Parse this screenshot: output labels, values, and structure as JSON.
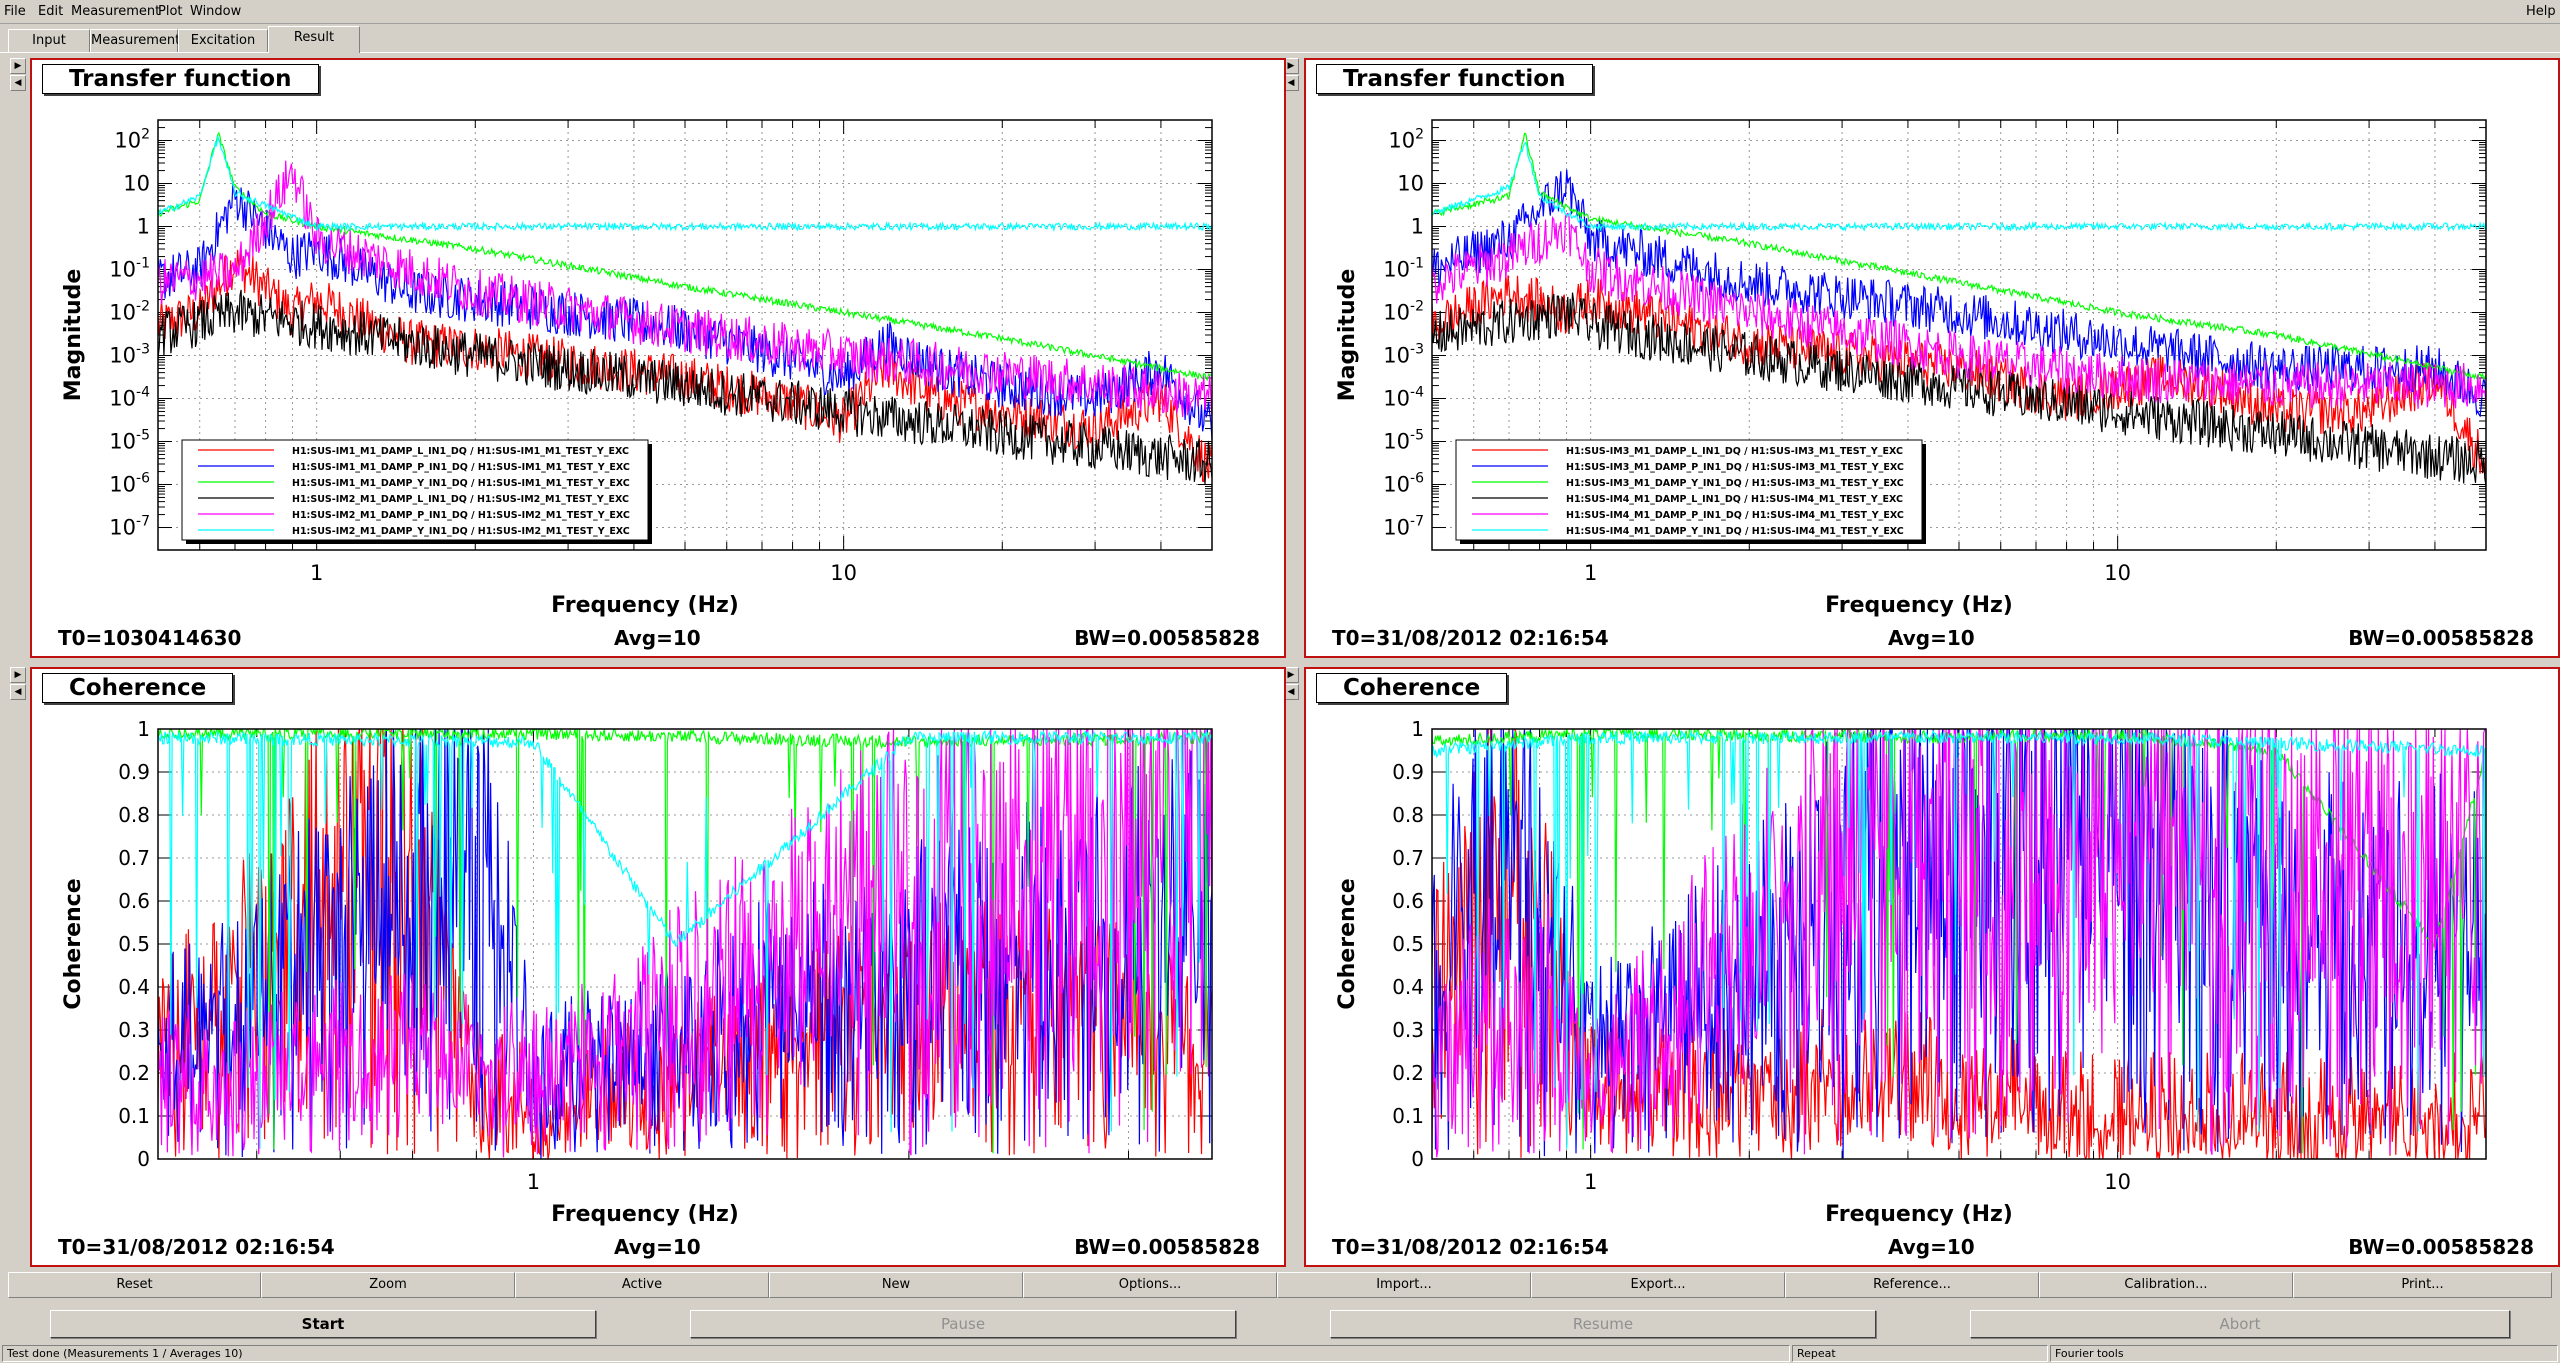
{
  "menubar": {
    "items": [
      "File",
      "Edit",
      "Measurement",
      "Plot",
      "Window"
    ],
    "help": "Help"
  },
  "tabs": [
    "Input",
    "Measurement",
    "Excitation",
    "Result"
  ],
  "active_tab": "Result",
  "panels": [
    {
      "title": "Transfer function",
      "ylabel": "Magnitude",
      "xlabel": "Frequency (Hz)",
      "t0": "T0=1030414630",
      "avg": "Avg=10",
      "bw": "BW=0.00585828",
      "legend": [
        "H1:SUS-IM1_M1_DAMP_L_IN1_DQ / H1:SUS-IM1_M1_TEST_Y_EXC",
        "H1:SUS-IM1_M1_DAMP_P_IN1_DQ / H1:SUS-IM1_M1_TEST_Y_EXC",
        "H1:SUS-IM1_M1_DAMP_Y_IN1_DQ / H1:SUS-IM1_M1_TEST_Y_EXC",
        "H1:SUS-IM2_M1_DAMP_L_IN1_DQ / H1:SUS-IM2_M1_TEST_Y_EXC",
        "H1:SUS-IM2_M1_DAMP_P_IN1_DQ / H1:SUS-IM2_M1_TEST_Y_EXC",
        "H1:SUS-IM2_M1_DAMP_Y_IN1_DQ / H1:SUS-IM2_M1_TEST_Y_EXC"
      ]
    },
    {
      "title": "Transfer function",
      "ylabel": "Magnitude",
      "xlabel": "Frequency (Hz)",
      "t0": "T0=31/08/2012 02:16:54",
      "avg": "Avg=10",
      "bw": "BW=0.00585828",
      "legend": [
        "H1:SUS-IM3_M1_DAMP_L_IN1_DQ / H1:SUS-IM3_M1_TEST_Y_EXC",
        "H1:SUS-IM3_M1_DAMP_P_IN1_DQ / H1:SUS-IM3_M1_TEST_Y_EXC",
        "H1:SUS-IM3_M1_DAMP_Y_IN1_DQ / H1:SUS-IM3_M1_TEST_Y_EXC",
        "H1:SUS-IM4_M1_DAMP_L_IN1_DQ / H1:SUS-IM4_M1_TEST_Y_EXC",
        "H1:SUS-IM4_M1_DAMP_P_IN1_DQ / H1:SUS-IM4_M1_TEST_Y_EXC",
        "H1:SUS-IM4_M1_DAMP_Y_IN1_DQ / H1:SUS-IM4_M1_TEST_Y_EXC"
      ]
    },
    {
      "title": "Coherence",
      "ylabel": "Coherence",
      "xlabel": "Frequency (Hz)",
      "t0": "T0=31/08/2012 02:16:54",
      "avg": "Avg=10",
      "bw": "BW=0.00585828"
    },
    {
      "title": "Coherence",
      "ylabel": "Coherence",
      "xlabel": "Frequency (Hz)",
      "t0": "T0=31/08/2012 02:16:54",
      "avg": "Avg=10",
      "bw": "BW=0.00585828"
    }
  ],
  "chart_data": [
    {
      "type": "line",
      "title": "Transfer function",
      "xlabel": "Frequency (Hz)",
      "ylabel": "Magnitude",
      "xscale": "log",
      "yscale": "log",
      "xlim": [
        0.5,
        50
      ],
      "ylim": [
        3e-08,
        300
      ],
      "xticks": [
        "1",
        "10"
      ],
      "yticks": [
        "10^2",
        "10",
        "1",
        "10^-1",
        "10^-2",
        "10^-3",
        "10^-4",
        "10^-5",
        "10^-6",
        "10^-7"
      ],
      "grid": true,
      "legend_position": "bottom-left",
      "series": [
        {
          "name": "H1:SUS-IM1_M1_DAMP_L_IN1_DQ / H1:SUS-IM1_M1_TEST_Y_EXC",
          "color": "#ff0000",
          "x": [
            0.5,
            0.6,
            0.7,
            0.9,
            1.0,
            1.5,
            2,
            3,
            5,
            8,
            10,
            12,
            15,
            20,
            30,
            40,
            50
          ],
          "y": [
            0.005,
            0.01,
            0.15,
            0.01,
            0.02,
            0.002,
            0.0015,
            0.0007,
            0.0003,
            8e-05,
            3e-05,
            0.0005,
            0.0001,
            5e-05,
            2e-05,
            0.0001,
            2e-06
          ]
        },
        {
          "name": "H1:SUS-IM1_M1_DAMP_P_IN1_DQ / H1:SUS-IM1_M1_TEST_Y_EXC",
          "color": "#0000ff",
          "x": [
            0.5,
            0.6,
            0.7,
            0.9,
            1.0,
            1.5,
            2,
            3,
            5,
            8,
            10,
            12,
            15,
            20,
            30,
            40,
            50
          ],
          "y": [
            0.06,
            0.1,
            5,
            0.2,
            0.3,
            0.03,
            0.02,
            0.01,
            0.004,
            0.0008,
            0.0003,
            0.002,
            0.0005,
            0.0002,
            0.0001,
            0.0005,
            2e-05
          ]
        },
        {
          "name": "H1:SUS-IM1_M1_DAMP_Y_IN1_DQ / H1:SUS-IM1_M1_TEST_Y_EXC",
          "color": "#00ff00",
          "x": [
            0.5,
            0.6,
            0.65,
            0.7,
            0.8,
            1.0,
            2,
            5,
            10,
            20,
            50
          ],
          "y": [
            2,
            4,
            150,
            8,
            2,
            1,
            0.3,
            0.04,
            0.01,
            0.0025,
            0.0003
          ]
        },
        {
          "name": "H1:SUS-IM2_M1_DAMP_L_IN1_DQ / H1:SUS-IM2_M1_TEST_Y_EXC",
          "color": "#000000",
          "x": [
            0.5,
            0.7,
            1.0,
            2,
            5,
            10,
            50
          ],
          "y": [
            0.003,
            0.01,
            0.005,
            0.001,
            0.0002,
            5e-05,
            3e-06
          ]
        },
        {
          "name": "H1:SUS-IM2_M1_DAMP_P_IN1_DQ / H1:SUS-IM2_M1_TEST_Y_EXC",
          "color": "#ff00ff",
          "x": [
            0.5,
            0.7,
            0.9,
            1.0,
            2,
            5,
            10,
            20,
            50
          ],
          "y": [
            0.05,
            0.08,
            20,
            0.5,
            0.03,
            0.004,
            0.001,
            0.0004,
            0.0001
          ]
        },
        {
          "name": "H1:SUS-IM2_M1_DAMP_Y_IN1_DQ / H1:SUS-IM2_M1_TEST_Y_EXC",
          "color": "#00ffff",
          "x": [
            0.5,
            0.6,
            0.65,
            0.7,
            1.0
          ],
          "y": [
            2,
            5,
            120,
            6,
            1
          ]
        }
      ]
    },
    {
      "type": "line",
      "title": "Transfer function",
      "xlabel": "Frequency (Hz)",
      "ylabel": "Magnitude",
      "xscale": "log",
      "yscale": "log",
      "xlim": [
        0.5,
        50
      ],
      "ylim": [
        3e-08,
        300
      ],
      "xticks": [
        "1",
        "10"
      ],
      "yticks": [
        "10^2",
        "10",
        "1",
        "10^-1",
        "10^-2",
        "10^-3",
        "10^-4",
        "10^-5",
        "10^-6",
        "10^-7"
      ],
      "grid": true,
      "legend_position": "bottom-left",
      "series": [
        {
          "name": "H1:SUS-IM3_M1_DAMP_L_IN1_DQ / H1:SUS-IM3_M1_TEST_Y_EXC",
          "color": "#ff0000",
          "x": [
            0.5,
            0.7,
            0.9,
            1.0,
            2,
            5,
            8,
            12,
            15,
            20,
            30,
            40,
            50
          ],
          "y": [
            0.005,
            0.03,
            0.01,
            0.02,
            0.002,
            0.0005,
            0.0001,
            0.0003,
            0.0002,
            5e-05,
            5e-05,
            0.0003,
            3e-06
          ]
        },
        {
          "name": "H1:SUS-IM3_M1_DAMP_P_IN1_DQ / H1:SUS-IM3_M1_TEST_Y_EXC",
          "color": "#0000ff",
          "x": [
            0.5,
            0.7,
            0.9,
            1.0,
            2,
            5,
            10,
            20,
            40,
            50
          ],
          "y": [
            0.1,
            0.5,
            10,
            0.5,
            0.05,
            0.01,
            0.002,
            0.0005,
            0.0005,
            0.0001
          ]
        },
        {
          "name": "H1:SUS-IM3_M1_DAMP_Y_IN1_DQ / H1:SUS-IM3_M1_TEST_Y_EXC",
          "color": "#00ff00",
          "x": [
            0.5,
            0.7,
            0.75,
            0.8,
            1.0,
            2,
            5,
            10,
            20,
            50
          ],
          "y": [
            2,
            5,
            150,
            6,
            1.5,
            0.4,
            0.05,
            0.01,
            0.003,
            0.0003
          ]
        },
        {
          "name": "H1:SUS-IM4_M1_DAMP_L_IN1_DQ / H1:SUS-IM4_M1_TEST_Y_EXC",
          "color": "#000000",
          "x": [
            0.5,
            0.9,
            1.0,
            2,
            10,
            50
          ],
          "y": [
            0.003,
            0.01,
            0.005,
            0.001,
            5e-05,
            3e-06
          ]
        },
        {
          "name": "H1:SUS-IM4_M1_DAMP_P_IN1_DQ / H1:SUS-IM4_M1_TEST_Y_EXC",
          "color": "#ff00ff",
          "x": [
            0.5,
            0.7,
            0.9,
            1.0,
            2,
            5,
            10,
            20
          ],
          "y": [
            0.05,
            0.2,
            1,
            0.1,
            0.01,
            0.001,
            0.0003,
            0.0002
          ]
        },
        {
          "name": "H1:SUS-IM4_M1_DAMP_Y_IN1_DQ / H1:SUS-IM4_M1_TEST_Y_EXC",
          "color": "#00ffff",
          "x": [
            0.5,
            0.7,
            0.75,
            0.8,
            1.0
          ],
          "y": [
            2,
            8,
            100,
            5,
            1
          ]
        }
      ]
    },
    {
      "type": "line",
      "title": "Coherence",
      "xlabel": "Frequency (Hz)",
      "ylabel": "Coherence",
      "xscale": "log",
      "xlim": [
        0.5,
        3.5
      ],
      "ylim": [
        0,
        1
      ],
      "xticks": [
        "1"
      ],
      "yticks": [
        "0",
        "0.1",
        "0.2",
        "0.3",
        "0.4",
        "0.5",
        "0.6",
        "0.7",
        "0.8",
        "0.9",
        "1"
      ],
      "grid": true,
      "series": [
        {
          "color": "#ff0000",
          "x": [
            0.5,
            0.6,
            0.7,
            0.8,
            0.9,
            1.0,
            1.5,
            2,
            3,
            3.5
          ],
          "y": [
            0.3,
            0.5,
            0.8,
            0.9,
            0.2,
            0.1,
            0.3,
            0.4,
            0.4,
            0.3
          ]
        },
        {
          "color": "#0000ff",
          "x": [
            0.5,
            0.7,
            0.9,
            1.0,
            1.5,
            2,
            3,
            3.5
          ],
          "y": [
            0.3,
            0.6,
            0.9,
            0.2,
            0.4,
            0.5,
            0.6,
            0.7
          ]
        },
        {
          "color": "#00ff00",
          "x": [
            0.5,
            1.0,
            2,
            3.5
          ],
          "y": [
            0.99,
            0.99,
            0.97,
            0.98
          ]
        },
        {
          "color": "#ff00ff",
          "x": [
            0.5,
            0.8,
            1.0,
            1.5,
            2,
            3,
            3.5
          ],
          "y": [
            0.2,
            0.3,
            0.2,
            0.5,
            0.7,
            0.9,
            0.95
          ]
        },
        {
          "color": "#00ffff",
          "x": [
            0.5,
            1.0,
            1.3,
            2,
            3.5
          ],
          "y": [
            0.98,
            0.97,
            0.5,
            0.98,
            0.98
          ]
        }
      ]
    },
    {
      "type": "line",
      "title": "Coherence",
      "xlabel": "Frequency (Hz)",
      "ylabel": "Coherence",
      "xscale": "log",
      "xlim": [
        0.5,
        50
      ],
      "ylim": [
        0,
        1
      ],
      "xticks": [
        "1",
        "10"
      ],
      "yticks": [
        "0",
        "0.1",
        "0.2",
        "0.3",
        "0.4",
        "0.5",
        "0.6",
        "0.7",
        "0.8",
        "0.9",
        "1"
      ],
      "grid": true,
      "series": [
        {
          "color": "#ff0000",
          "x": [
            0.5,
            0.7,
            1.0,
            2,
            5,
            10,
            20,
            50
          ],
          "y": [
            0.4,
            0.8,
            0.2,
            0.2,
            0.2,
            0.1,
            0.1,
            0.1
          ]
        },
        {
          "color": "#0000ff",
          "x": [
            0.5,
            0.7,
            1.0,
            2,
            5,
            10,
            20,
            50
          ],
          "y": [
            0.5,
            0.9,
            0.3,
            0.5,
            0.9,
            0.95,
            0.6,
            0.6
          ]
        },
        {
          "color": "#00ff00",
          "x": [
            0.5,
            1.0,
            5,
            10,
            20,
            40,
            50
          ],
          "y": [
            0.97,
            0.99,
            0.98,
            0.99,
            0.95,
            0.5,
            0.95
          ]
        },
        {
          "color": "#ff00ff",
          "x": [
            0.5,
            0.8,
            1.0,
            2,
            3
          ],
          "y": [
            0.3,
            0.5,
            0.2,
            0.6,
            0.8
          ]
        },
        {
          "color": "#00ffff",
          "x": [
            0.5,
            1.0,
            10,
            50
          ],
          "y": [
            0.95,
            0.98,
            0.98,
            0.95
          ]
        }
      ]
    }
  ],
  "toolbar1": [
    "Reset",
    "Zoom",
    "Active",
    "New",
    "Options...",
    "Import...",
    "Export...",
    "Reference...",
    "Calibration...",
    "Print..."
  ],
  "toolbar2": [
    "Start",
    "Pause",
    "Resume",
    "Abort"
  ],
  "status": [
    "Test done (Measurements 1 / Averages 10)",
    "Repeat",
    "Fourier tools"
  ]
}
